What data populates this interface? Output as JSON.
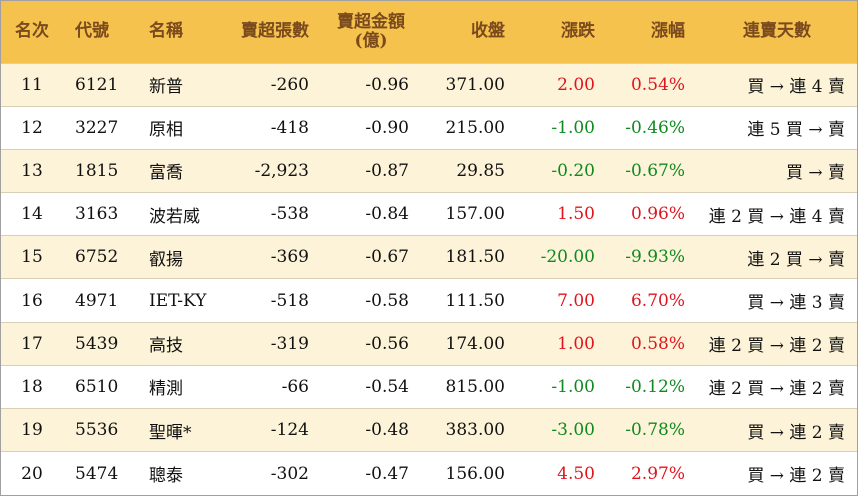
{
  "headers": {
    "rank": "名次",
    "code": "代號",
    "name": "名稱",
    "net_sell_lots": "賣超張數",
    "net_sell_amount_line1": "賣超金額",
    "net_sell_amount_line2": "(億)",
    "close": "收盤",
    "change": "漲跌",
    "change_pct": "漲幅",
    "streak": "連賣天數"
  },
  "rows": [
    {
      "rank": "11",
      "code": "6121",
      "name": "新普",
      "lots": "-260",
      "amount": "-0.96",
      "close": "371.00",
      "change": "2.00",
      "pct": "0.54%",
      "dir": "up",
      "streak": "買 → 連 4 賣"
    },
    {
      "rank": "12",
      "code": "3227",
      "name": "原相",
      "lots": "-418",
      "amount": "-0.90",
      "close": "215.00",
      "change": "-1.00",
      "pct": "-0.46%",
      "dir": "down",
      "streak": "連 5 買 → 賣"
    },
    {
      "rank": "13",
      "code": "1815",
      "name": "富喬",
      "lots": "-2,923",
      "amount": "-0.87",
      "close": "29.85",
      "change": "-0.20",
      "pct": "-0.67%",
      "dir": "down",
      "streak": "買 → 賣"
    },
    {
      "rank": "14",
      "code": "3163",
      "name": "波若威",
      "lots": "-538",
      "amount": "-0.84",
      "close": "157.00",
      "change": "1.50",
      "pct": "0.96%",
      "dir": "up",
      "streak": "連 2 買 → 連 4 賣"
    },
    {
      "rank": "15",
      "code": "6752",
      "name": "叡揚",
      "lots": "-369",
      "amount": "-0.67",
      "close": "181.50",
      "change": "-20.00",
      "pct": "-9.93%",
      "dir": "down",
      "streak": "連 2 買 → 賣"
    },
    {
      "rank": "16",
      "code": "4971",
      "name": "IET-KY",
      "lots": "-518",
      "amount": "-0.58",
      "close": "111.50",
      "change": "7.00",
      "pct": "6.70%",
      "dir": "up",
      "streak": "買 → 連 3 賣"
    },
    {
      "rank": "17",
      "code": "5439",
      "name": "高技",
      "lots": "-319",
      "amount": "-0.56",
      "close": "174.00",
      "change": "1.00",
      "pct": "0.58%",
      "dir": "up",
      "streak": "連 2 買 → 連 2 賣"
    },
    {
      "rank": "18",
      "code": "6510",
      "name": "精測",
      "lots": "-66",
      "amount": "-0.54",
      "close": "815.00",
      "change": "-1.00",
      "pct": "-0.12%",
      "dir": "down",
      "streak": "連 2 買 → 連 2 賣"
    },
    {
      "rank": "19",
      "code": "5536",
      "name": "聖暉*",
      "lots": "-124",
      "amount": "-0.48",
      "close": "383.00",
      "change": "-3.00",
      "pct": "-0.78%",
      "dir": "down",
      "streak": "買 → 連 2 賣"
    },
    {
      "rank": "20",
      "code": "5474",
      "name": "聰泰",
      "lots": "-302",
      "amount": "-0.47",
      "close": "156.00",
      "change": "4.50",
      "pct": "2.97%",
      "dir": "up",
      "streak": "買 → 連 2 賣"
    }
  ],
  "colors": {
    "header_bg": "#f6c24e",
    "header_text": "#7a4a1c",
    "odd_row_bg": "#fdf3d8",
    "up": "#e0141e",
    "down": "#0f8a1e"
  }
}
